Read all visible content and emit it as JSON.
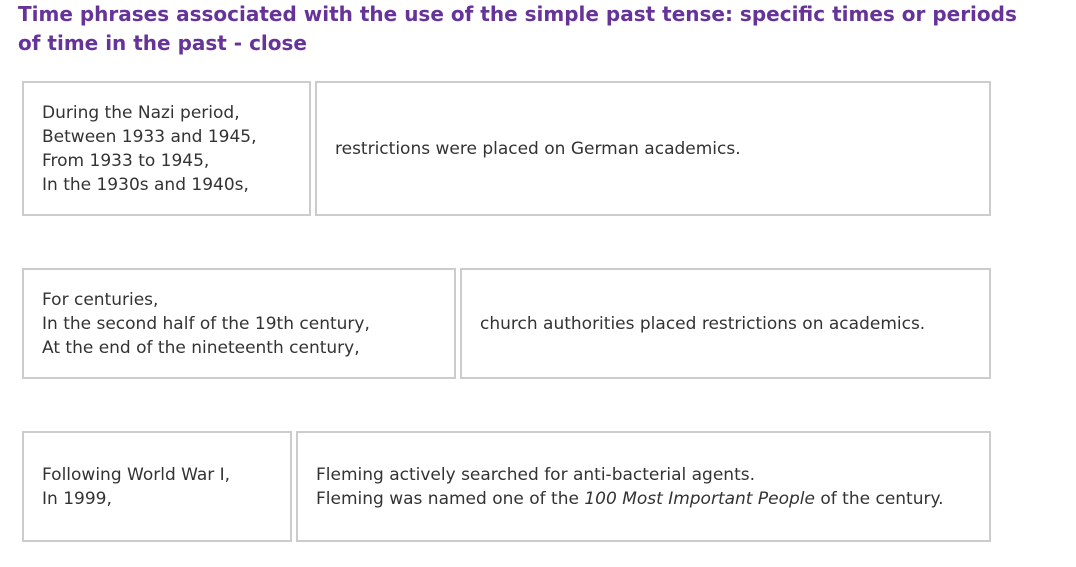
{
  "title": "Time phrases associated with the use of the simple past tense: specific times or periods of time in the past - close",
  "rows": [
    {
      "time_phrases": [
        "During the Nazi period,",
        "Between 1933 and 1945,",
        "From 1933 to 1945,",
        "In the 1930s and 1940s,"
      ],
      "sentences": [
        "restrictions were placed on German academics."
      ]
    },
    {
      "time_phrases": [
        "For centuries,",
        "In the second half of the 19th century,",
        "At the end of the nineteenth century,"
      ],
      "sentences": [
        "church authorities placed restrictions on academics."
      ]
    },
    {
      "time_phrases": [
        "Following World War I,",
        "In 1999,"
      ],
      "sentences": [
        "Fleming actively searched for anti-bacterial agents.",
        {
          "before": "Fleming was named one of the",
          "emphasis": "100 Most Important People",
          "after": "of the century."
        }
      ]
    }
  ]
}
